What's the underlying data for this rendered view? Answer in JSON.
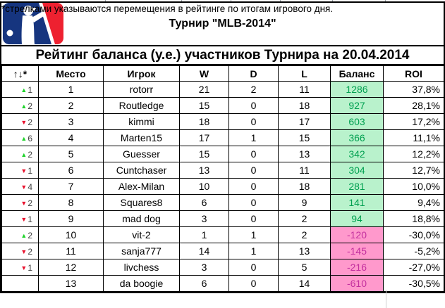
{
  "header": {
    "title": "Турнир \"MLB-2014\"",
    "subtitle": "Рейтинг баланса (у.е.) участников Турнира на 20.04.2014"
  },
  "icons": {
    "rank_up": "▲",
    "rank_down": "▼"
  },
  "colors": {
    "pos_bg": "#b9f2cc",
    "pos_text": "#00a050",
    "neg_bg": "#ff99cc",
    "neg_text": "#c32f9e",
    "up_arrow": "#1fd32b",
    "down_arrow": "#e8112d",
    "logo_blue": "#16357f",
    "logo_red": "#ee2130"
  },
  "table": {
    "columns": [
      "↑↓*",
      "Место",
      "Игрок",
      "W",
      "D",
      "L",
      "Баланс",
      "ROI"
    ],
    "rows": [
      {
        "move": "up",
        "delta": "1",
        "place": "1",
        "player": "rotorr",
        "w": "21",
        "d": "2",
        "l": "11",
        "balance": "1286",
        "roi": "37,8%"
      },
      {
        "move": "up",
        "delta": "2",
        "place": "2",
        "player": "Routledge",
        "w": "15",
        "d": "0",
        "l": "18",
        "balance": "927",
        "roi": "28,1%"
      },
      {
        "move": "down",
        "delta": "2",
        "place": "3",
        "player": "kimmi",
        "w": "18",
        "d": "0",
        "l": "17",
        "balance": "603",
        "roi": "17,2%"
      },
      {
        "move": "up",
        "delta": "6",
        "place": "4",
        "player": "Marten15",
        "w": "17",
        "d": "1",
        "l": "15",
        "balance": "366",
        "roi": "11,1%"
      },
      {
        "move": "up",
        "delta": "2",
        "place": "5",
        "player": "Guesser",
        "w": "15",
        "d": "0",
        "l": "13",
        "balance": "342",
        "roi": "12,2%"
      },
      {
        "move": "down",
        "delta": "1",
        "place": "6",
        "player": "Cuntchaser",
        "w": "13",
        "d": "0",
        "l": "11",
        "balance": "304",
        "roi": "12,7%"
      },
      {
        "move": "down",
        "delta": "4",
        "place": "7",
        "player": "Alex-Milan",
        "w": "10",
        "d": "0",
        "l": "18",
        "balance": "281",
        "roi": "10,0%"
      },
      {
        "move": "down",
        "delta": "2",
        "place": "8",
        "player": "Squares8",
        "w": "6",
        "d": "0",
        "l": "9",
        "balance": "141",
        "roi": "9,4%"
      },
      {
        "move": "down",
        "delta": "1",
        "place": "9",
        "player": "mad dog",
        "w": "3",
        "d": "0",
        "l": "2",
        "balance": "94",
        "roi": "18,8%"
      },
      {
        "move": "up",
        "delta": "2",
        "place": "10",
        "player": "vit-2",
        "w": "1",
        "d": "1",
        "l": "2",
        "balance": "-120",
        "roi": "-30,0%"
      },
      {
        "move": "down",
        "delta": "2",
        "place": "11",
        "player": "sanja777",
        "w": "14",
        "d": "1",
        "l": "13",
        "balance": "-145",
        "roi": "-5,2%"
      },
      {
        "move": "down",
        "delta": "1",
        "place": "12",
        "player": "livchess",
        "w": "3",
        "d": "0",
        "l": "5",
        "balance": "-216",
        "roi": "-27,0%"
      },
      {
        "move": "",
        "delta": "",
        "place": "13",
        "player": "da boogie",
        "w": "6",
        "d": "0",
        "l": "14",
        "balance": "-610",
        "roi": "-30,5%"
      }
    ]
  },
  "footnote": "*стрелками указываются перемещения в рейтинге по итогам игрового дня."
}
